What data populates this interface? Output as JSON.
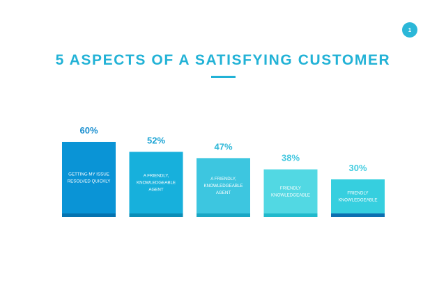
{
  "page": {
    "number": "1",
    "title": "5 ASPECTS OF A SATISFYING CUSTOMER"
  },
  "colors": {
    "accent": "#22b2d6",
    "bars": [
      "#0a94d6",
      "#17b0dc",
      "#3dc6e0",
      "#52d8e3",
      "#36cfdf"
    ],
    "bar_shadow": [
      "#0573b0",
      "#0b8db7",
      "#1aa6c4",
      "#21b9cc",
      "#0c6fb0"
    ],
    "labels": [
      "#1a8fd0",
      "#1aa3d4",
      "#2fb8d8",
      "#45c8e0",
      "#40cce0"
    ]
  },
  "chart_data": {
    "type": "bar",
    "title": "5 ASPECTS OF A SATISFYING CUSTOMER",
    "categories": [
      "GETTING MY ISSUE RESOLVED QUICKLY",
      "A FRIENDLY, KNOWLEDGEABLE AGENT",
      "A FRIENDLY, KNOWLEDGEABLE AGENT",
      "FRIENDLY KNOWLEDGEABLE",
      "FRIENDLY KNOWLEDGEABLE"
    ],
    "category_lines": [
      [
        "GETTING MY ISSUE",
        "RESOLVED QUICKLY"
      ],
      [
        "A FRIENDLY,",
        "KNOWLEDGEABLE",
        "AGENT"
      ],
      [
        "A FRIENDLY,",
        "KNOWLEDGEABLE",
        "AGENT"
      ],
      [
        "FRIENDLY",
        "KNOWLEDGEABLE"
      ],
      [
        "FRIENDLY",
        "KNOWLEDGEABLE"
      ]
    ],
    "values": [
      60,
      52,
      47,
      38,
      30
    ],
    "value_labels": [
      "60%",
      "52%",
      "47%",
      "38%",
      "30%"
    ],
    "ylim": [
      0,
      100
    ],
    "grid": false,
    "legend": "none"
  }
}
